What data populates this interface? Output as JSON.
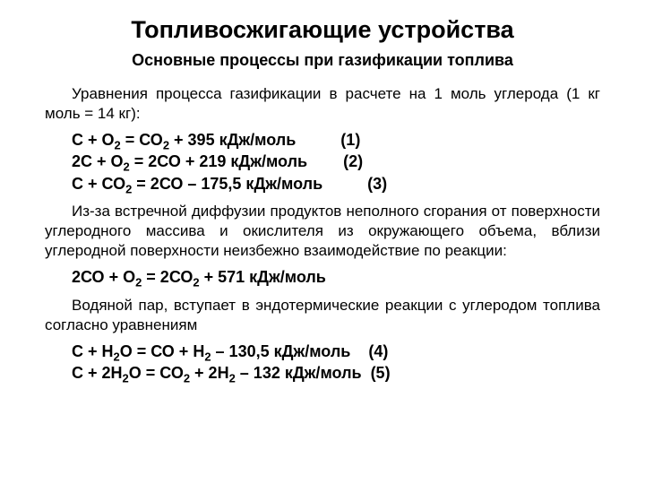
{
  "title": "Топливосжигающие устройства",
  "subtitle": "Основные процессы при газификации топлива",
  "p1": "Уравнения процесса газификации в расчете на 1 моль углерода (1 кг моль = 14 кг):",
  "group1": {
    "r1a": "С + О",
    "r1b": " = СО",
    "r1c": " + 395 кДж/моль          (1)",
    "r2a": "2С + О",
    "r2b": " = 2СО + 219 кДж/моль        (2)",
    "r3a": "С + СО",
    "r3b": " = 2СО – 175,5 кДж/моль          (3)"
  },
  "p2": "Из-за встречной диффузии продуктов неполного сгорания от поверхности углеродного массива и окислителя из окружающего объема, вблизи углеродной поверхности неизбежно взаимодействие по реакции:",
  "group2": {
    "r4a": "2СО + О",
    "r4b": " = 2СО",
    "r4c": " + 571 кДж/моль"
  },
  "p3": "Водяной пар, вступает в эндотермические реакции с углеродом топлива согласно уравнениям",
  "group3": {
    "r5a": "С + Н",
    "r5b": "О = СО + Н",
    "r5c": " – 130,5 кДж/моль    (4)",
    "r6a": "С + 2Н",
    "r6b": "О = СО",
    "r6c": " + 2Н",
    "r6d": " – 132 кДж/моль  (5)"
  },
  "sub2": "2"
}
